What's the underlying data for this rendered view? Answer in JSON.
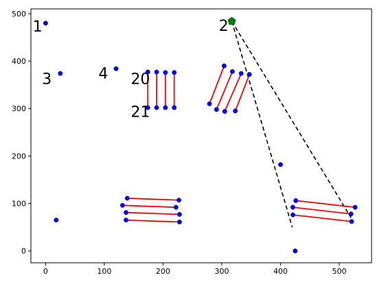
{
  "chart_data": {
    "type": "scatter",
    "title": "",
    "xlabel": "",
    "ylabel": "",
    "xlim": [
      -25,
      555
    ],
    "ylim": [
      -25,
      510
    ],
    "grid": false,
    "legend": "none",
    "x_ticks": [
      0,
      100,
      200,
      300,
      400,
      500
    ],
    "y_ticks": [
      0,
      100,
      200,
      300,
      400,
      500
    ],
    "colors": {
      "point": "#0000ff",
      "point_edge": "#0000aa",
      "segment": "#ff0000",
      "dashed": "#000000",
      "marker": "#008000"
    },
    "points": [
      {
        "x": 0,
        "y": 480
      },
      {
        "x": 25,
        "y": 374
      },
      {
        "x": 120,
        "y": 384
      },
      {
        "x": 18,
        "y": 65
      },
      {
        "x": 400,
        "y": 182
      },
      {
        "x": 425,
        "y": 0
      }
    ],
    "point_labels": [
      {
        "text": "1",
        "x": -22,
        "y": 462
      },
      {
        "text": "2",
        "x": 295,
        "y": 464
      },
      {
        "text": "3",
        "x": -6,
        "y": 352
      },
      {
        "text": "4",
        "x": 90,
        "y": 363
      },
      {
        "text": "20",
        "x": 145,
        "y": 352
      },
      {
        "text": "21",
        "x": 145,
        "y": 282
      }
    ],
    "segments": [
      {
        "x1": 174,
        "y1": 302,
        "x2": 174,
        "y2": 377
      },
      {
        "x1": 189,
        "y1": 302,
        "x2": 189,
        "y2": 377
      },
      {
        "x1": 204,
        "y1": 302,
        "x2": 204,
        "y2": 376
      },
      {
        "x1": 219,
        "y1": 302,
        "x2": 219,
        "y2": 376
      },
      {
        "x1": 279,
        "y1": 310,
        "x2": 304,
        "y2": 390
      },
      {
        "x1": 291,
        "y1": 298,
        "x2": 318,
        "y2": 378
      },
      {
        "x1": 305,
        "y1": 294,
        "x2": 333,
        "y2": 374
      },
      {
        "x1": 323,
        "y1": 295,
        "x2": 347,
        "y2": 372
      },
      {
        "x1": 139,
        "y1": 111,
        "x2": 227,
        "y2": 107
      },
      {
        "x1": 131,
        "y1": 96,
        "x2": 222,
        "y2": 92
      },
      {
        "x1": 137,
        "y1": 81,
        "x2": 228,
        "y2": 77
      },
      {
        "x1": 137,
        "y1": 65,
        "x2": 228,
        "y2": 61
      },
      {
        "x1": 426,
        "y1": 106,
        "x2": 527,
        "y2": 92
      },
      {
        "x1": 421,
        "y1": 92,
        "x2": 520,
        "y2": 78
      },
      {
        "x1": 421,
        "y1": 76,
        "x2": 521,
        "y2": 62
      }
    ],
    "dashed_lines": [
      {
        "x1": 317,
        "y1": 484,
        "x2": 420,
        "y2": 50
      },
      {
        "x1": 317,
        "y1": 484,
        "x2": 520,
        "y2": 70
      }
    ],
    "highlight_marker": {
      "x": 317,
      "y": 484,
      "shape": "pentagon"
    }
  }
}
